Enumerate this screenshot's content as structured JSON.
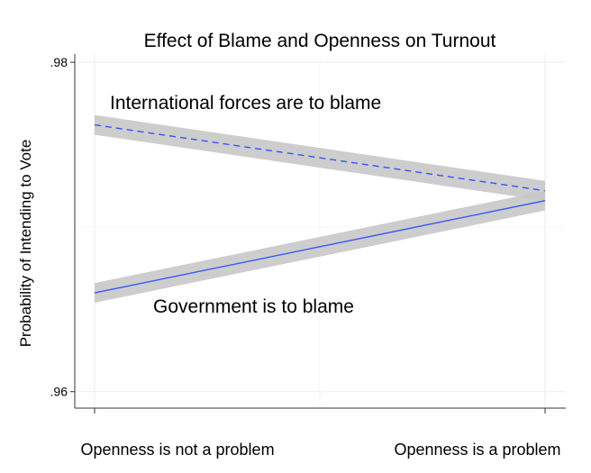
{
  "chart_data": {
    "type": "line",
    "title": "Effect of Blame and Openness on Turnout",
    "ylabel": "Probability of Intending to Vote",
    "xlabel": "",
    "categories": [
      "Openness is not a problem",
      "Openness is a problem"
    ],
    "ylim": [
      0.959,
      0.9805
    ],
    "yticks": [
      {
        "value": 0.96,
        "label": ".96"
      },
      {
        "value": 0.98,
        "label": ".98"
      }
    ],
    "grid": true,
    "legend": "none",
    "series": [
      {
        "name": "International forces are to blame",
        "values": [
          0.9762,
          0.9722
        ],
        "ci_low": [
          0.9756,
          0.9716
        ],
        "ci_high": [
          0.9768,
          0.9728
        ],
        "line_style": "dashed"
      },
      {
        "name": "Government is to blame",
        "values": [
          0.966,
          0.9716
        ],
        "ci_low": [
          0.9654,
          0.971
        ],
        "ci_high": [
          0.9666,
          0.9722
        ],
        "line_style": "solid"
      }
    ],
    "colors": {
      "line": "#3355ff",
      "ribbon": "#c8c8c8",
      "grid": "#ebebeb",
      "axis": "#333333"
    }
  }
}
